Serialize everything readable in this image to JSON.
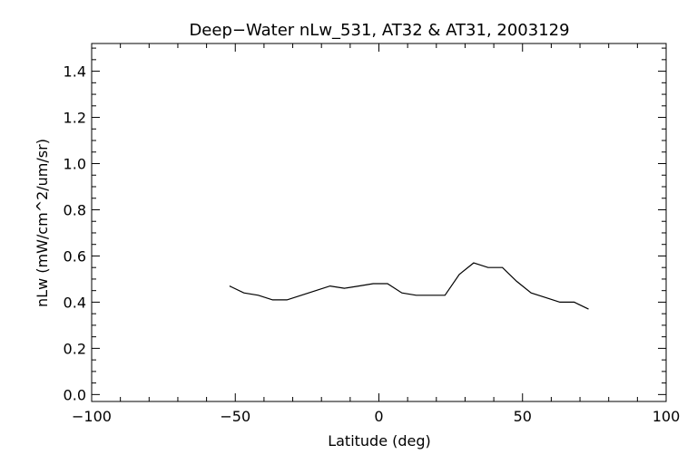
{
  "chart_data": {
    "type": "line",
    "title": "Deep−Water nLw_531, AT32 & AT31, 2003129",
    "xlabel": "Latitude (deg)",
    "ylabel": "nLw (mW/cm^2/um/sr)",
    "xlim": [
      -100,
      100
    ],
    "ylim": [
      -0.03,
      1.52
    ],
    "xticks": [
      -100,
      -50,
      0,
      50,
      100
    ],
    "xtick_labels": [
      "−100",
      "−50",
      "0",
      "50",
      "100"
    ],
    "yticks": [
      0.0,
      0.2,
      0.4,
      0.6,
      0.8,
      1.0,
      1.2,
      1.4
    ],
    "ytick_labels": [
      "0.0",
      "0.2",
      "0.4",
      "0.6",
      "0.8",
      "1.0",
      "1.2",
      "1.4"
    ],
    "grid": false,
    "series": [
      {
        "x": [
          -52,
          -47,
          -42,
          -37,
          -32,
          -27,
          -22,
          -17,
          -12,
          -7,
          -2,
          3,
          8,
          13,
          18,
          23,
          28,
          33,
          38,
          43,
          48,
          53,
          58,
          63,
          68,
          73
        ],
        "y": [
          0.47,
          0.44,
          0.43,
          0.41,
          0.41,
          0.43,
          0.45,
          0.47,
          0.46,
          0.47,
          0.48,
          0.48,
          0.44,
          0.43,
          0.43,
          0.43,
          0.52,
          0.57,
          0.55,
          0.55,
          0.49,
          0.44,
          0.42,
          0.4,
          0.4,
          0.37
        ]
      }
    ]
  }
}
